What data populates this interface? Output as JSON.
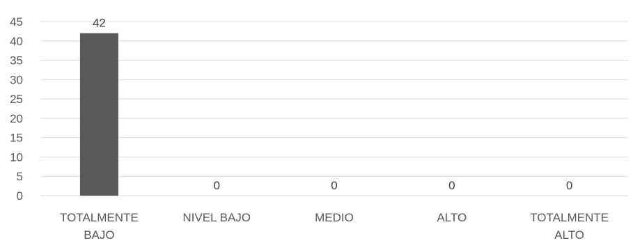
{
  "chart_data": {
    "type": "bar",
    "categories": [
      [
        "TOTALMENTE",
        "BAJO"
      ],
      [
        "NIVEL BAJO"
      ],
      [
        "MEDIO"
      ],
      [
        "ALTO"
      ],
      [
        "TOTALMENTE",
        "ALTO"
      ]
    ],
    "values": [
      42,
      0,
      0,
      0,
      0
    ],
    "data_labels": [
      "42",
      "0",
      "0",
      "0",
      "0"
    ],
    "ylim": [
      0,
      45
    ],
    "yticks": [
      0,
      5,
      10,
      15,
      20,
      25,
      30,
      35,
      40,
      45
    ],
    "grid": true,
    "legend": "none",
    "bar_color": "#595959",
    "grid_color": "#d9d9d9",
    "text_color": "#595959"
  }
}
